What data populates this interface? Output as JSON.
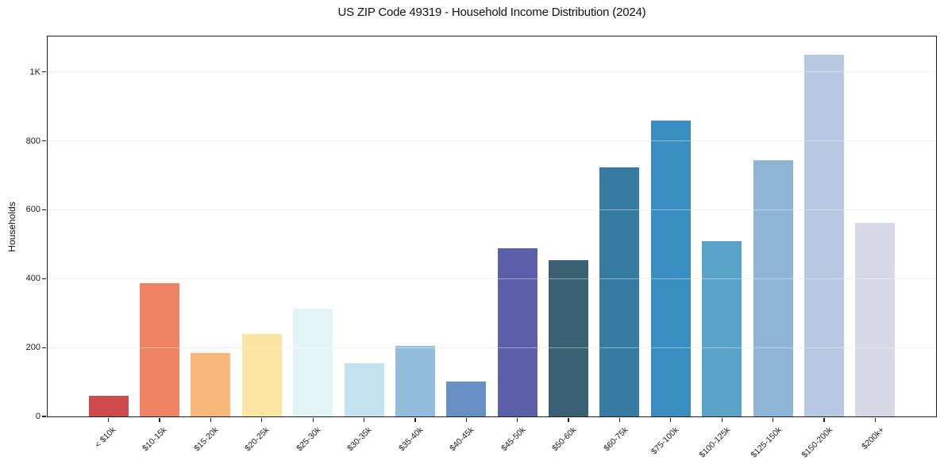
{
  "chart_data": {
    "type": "bar",
    "title": "US ZIP Code 49319 - Household Income Distribution (2024)",
    "xlabel": "",
    "ylabel": "Households",
    "categories": [
      "< $10k",
      "$10-15k",
      "$15-20k",
      "$20-25k",
      "$25-30k",
      "$30-35k",
      "$35-40k",
      "$40-45k",
      "$45-50k",
      "$50-60k",
      "$60-75k",
      "$75-100k",
      "$100-125k",
      "$125-150k",
      "$150-200k",
      "$200k+"
    ],
    "values": [
      60,
      388,
      185,
      240,
      313,
      154,
      205,
      102,
      488,
      453,
      722,
      860,
      508,
      744,
      1051,
      563
    ],
    "bar_colors": [
      "#cd4b4d",
      "#ef8364",
      "#fab87a",
      "#fce5a2",
      "#e3f4f6",
      "#c2e2ef",
      "#91bcda",
      "#6791c4",
      "#5b5fa9",
      "#3a6073",
      "#357ba2",
      "#398dc1",
      "#59a3c8",
      "#8eb4d6",
      "#b6c8e2",
      "#d7d8e6"
    ],
    "ylim": [
      0,
      1103
    ],
    "yticks": [
      {
        "value": 0,
        "label": "0"
      },
      {
        "value": 200,
        "label": "200"
      },
      {
        "value": 400,
        "label": "400"
      },
      {
        "value": 600,
        "label": "600"
      },
      {
        "value": 800,
        "label": "800"
      },
      {
        "value": 1000,
        "label": "1K"
      }
    ],
    "grid": "horizontal-only",
    "legend": "none"
  }
}
